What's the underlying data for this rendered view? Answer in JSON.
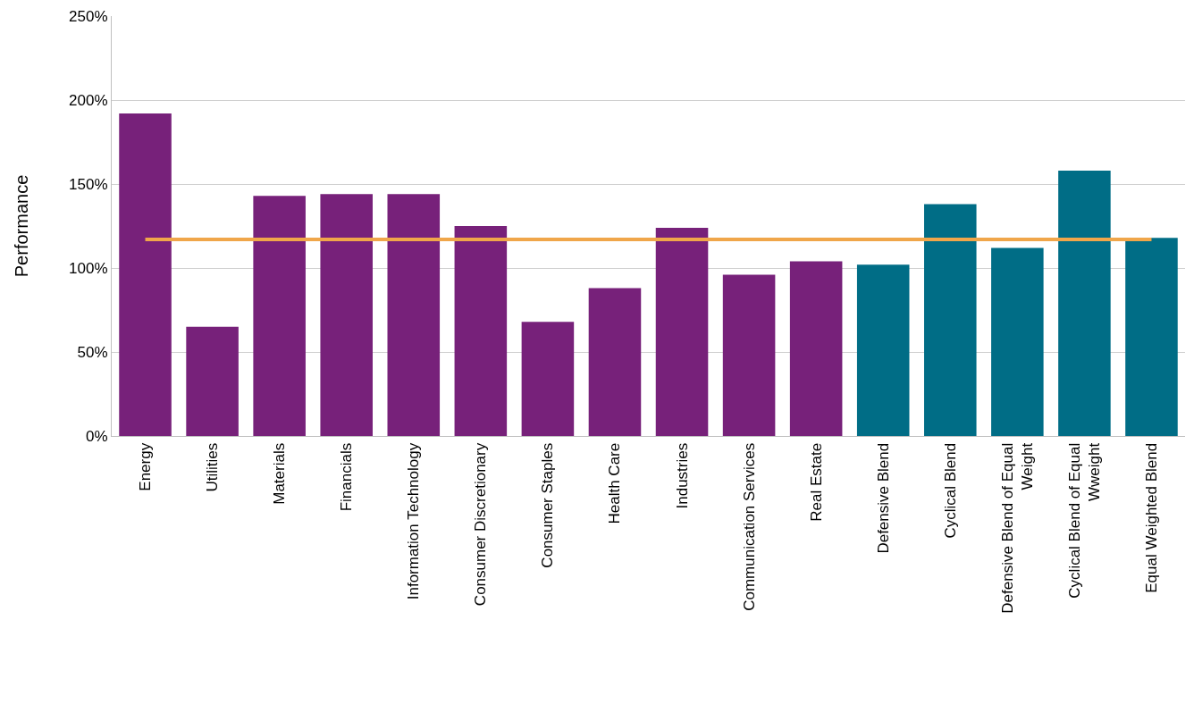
{
  "chart_data": {
    "type": "bar",
    "ylabel": "Performance",
    "categories": [
      "Energy",
      "Utilities",
      "Materials",
      "Financials",
      "Information Technology",
      "Consumer Discretionary",
      "Consumer Staples",
      "Health Care",
      "Industries",
      "Communication Services",
      "Real Estate",
      "Defensive Blend",
      "Cyclical Blend",
      "Defensive Blend of Equal Weight",
      "Cyclical Blend of Equal Wweight",
      "Equal Weighted Blend"
    ],
    "series": [
      {
        "colors": [
          "#77217a",
          "#77217a",
          "#77217a",
          "#77217a",
          "#77217a",
          "#77217a",
          "#77217a",
          "#77217a",
          "#77217a",
          "#77217a",
          "#77217a",
          "#006d86",
          "#006d86",
          "#006d86",
          "#006d86",
          "#006d86"
        ],
        "values": [
          192,
          65,
          143,
          144,
          144,
          125,
          68,
          88,
          124,
          96,
          104,
          102,
          138,
          112,
          158,
          118
        ]
      },
      {
        "type": "line",
        "color": "#f0a64a",
        "values": [
          117,
          117,
          117,
          117,
          117,
          117,
          117,
          117,
          117,
          117,
          117,
          117,
          117,
          117,
          117,
          117
        ]
      }
    ],
    "ylim": [
      0,
      250
    ],
    "yticks": [
      {
        "value": 0,
        "label": "0%"
      },
      {
        "value": 50,
        "label": "50%"
      },
      {
        "value": 100,
        "label": "100%"
      },
      {
        "value": 150,
        "label": "150%"
      },
      {
        "value": 200,
        "label": "200%"
      },
      {
        "value": 250,
        "label": "250%"
      }
    ],
    "grid": "y"
  }
}
